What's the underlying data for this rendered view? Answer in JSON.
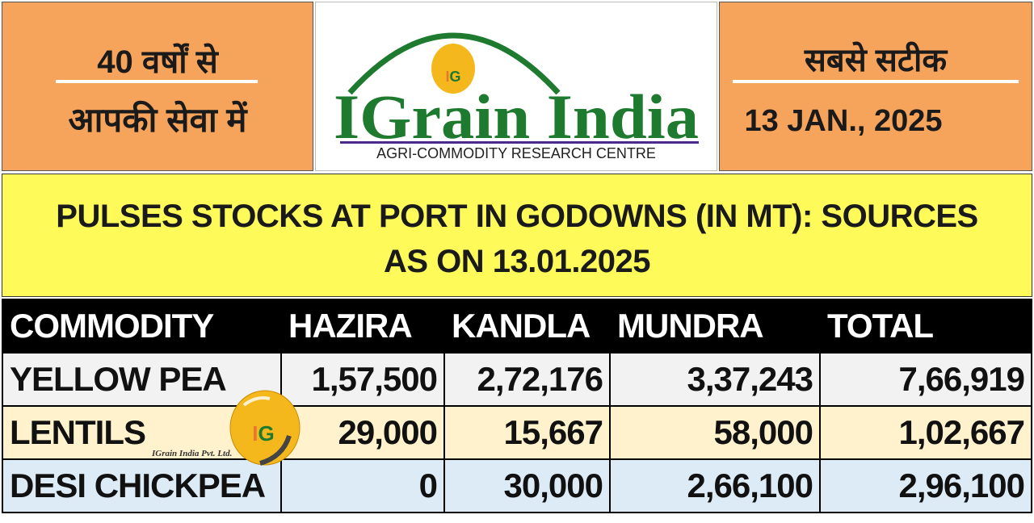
{
  "header": {
    "left_line1": "40 वर्षों से",
    "left_line2": "आपकी सेवा में",
    "right_line1": "सबसे सटीक",
    "date": "13 JAN., 2025",
    "logo": {
      "brand": "IGrain India",
      "tagline": "AGRI-COMMODITY RESEARCH CENTRE",
      "badge": "IG"
    }
  },
  "title": {
    "line1": "PULSES STOCKS AT PORT IN GODOWNS (IN MT): SOURCES",
    "line2": "AS ON 13.01.2025"
  },
  "table": {
    "headers": [
      "COMMODITY",
      "HAZIRA",
      "KANDLA",
      "MUNDRA",
      "TOTAL"
    ],
    "rows": [
      [
        "YELLOW PEA",
        "1,57,500",
        "2,72,176",
        "3,37,243",
        "7,66,919"
      ],
      [
        "LENTILS",
        "29,000",
        "15,667",
        "58,000",
        "1,02,667"
      ],
      [
        "DESI CHICKPEA",
        "0",
        "30,000",
        "2,66,100",
        "2,96,100"
      ]
    ]
  },
  "watermark": {
    "badge": "IG",
    "company": "IGrain India Pvt. Ltd."
  },
  "colors": {
    "header_orange": "#F6A35C",
    "band_yellow": "#FDFA5A",
    "logo_green": "#1E7A2E",
    "row1": "#F2F2F2",
    "row2": "#FFF2CC",
    "row3": "#DDEBF7"
  }
}
